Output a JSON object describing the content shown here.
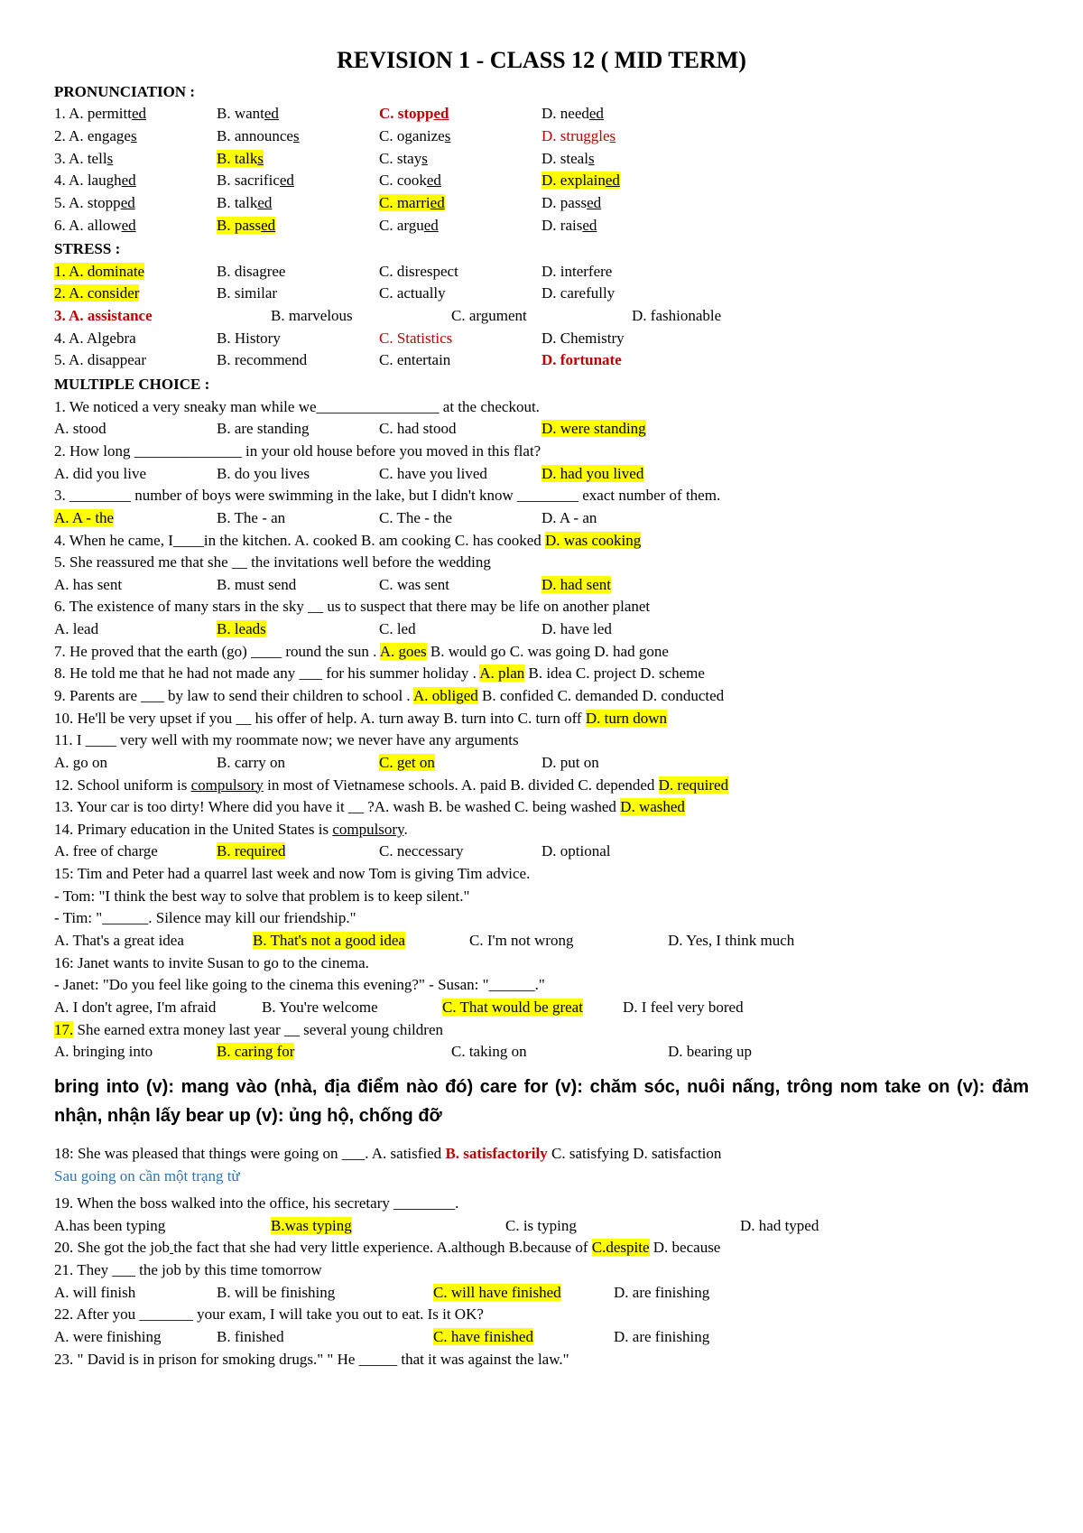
{
  "title": "REVISION 1 - CLASS 12 ( MID TERM)",
  "sections": {
    "pronunciation": "PRONUNCIATION :",
    "stress": "STRESS :",
    "mc": "MULTIPLE CHOICE :"
  },
  "pron": [
    {
      "a": "1. A. permitt",
      "au": "ed",
      "b": "B. want",
      "bu": "ed",
      "c": "C. stopp",
      "cu": "ed",
      "cRedBold": true,
      "d": "D. need",
      "du": "ed"
    },
    {
      "a": "2. A. engage",
      "au": "s",
      "b": "B. announce",
      "bu": "s",
      "c": "C. oganize",
      "cu": "s",
      "d": "D. struggle",
      "du": "s",
      "dRed": true
    },
    {
      "a": "3. A. tell",
      "au": "s",
      "b": "B. talk",
      "bu": "s",
      "bHl": true,
      "c": "C. stay",
      "cu": "s",
      "d": "D. steal",
      "du": "s"
    },
    {
      "a": "4. A. laugh",
      "au": "ed",
      "b": "B. sacrific",
      "bu": "ed",
      "c": "C. cook",
      "cu": "ed",
      "d": "D. explain",
      "du": "ed",
      "dHl": true
    },
    {
      "a": "5. A. stopp",
      "au": "ed",
      "b": "B. talk",
      "bu": "ed",
      "c": "C. marri",
      "cu": "ed",
      "cHl": true,
      "d": "D. pass",
      "du": "ed "
    },
    {
      "a": "6. A. allow",
      "au": "ed",
      "b": "B. pass",
      "bu": "ed",
      "bHl": true,
      "c": "C. argu",
      "cu": "ed",
      "d": "D. rais",
      "du": "ed "
    }
  ],
  "stress": [
    {
      "a": "1. A. dominate",
      "aHl": true,
      "b": "B. disagree",
      "c": "C. disrespect",
      "d": "D. interfere"
    },
    {
      "a": "2. A. consider",
      "aHl": true,
      "b": "B. similar",
      "c": "C. actually",
      "d": "D. carefully"
    },
    {
      "type": "three",
      "a": "3. A. assistance",
      "aRedBold": true,
      "b": "B. marvelous",
      "c": "C. argument",
      "d": "D. fashionable"
    },
    {
      "a": "4. A. Algebra",
      "b": "B. History",
      "c": "C. Statistics",
      "cRed": true,
      "d": "D. Chemistry"
    },
    {
      "a": "5. A. disappear",
      "b": "B. recommend",
      "c": "C. entertain",
      "d": "D. fortunate",
      "dRedBold": true
    }
  ],
  "mc": {
    "q1": "1. We noticed a very sneaky man while we________________ at the checkout.",
    "q1a": "A. stood",
    "q1b": "B. are standing",
    "q1c": "C. had stood",
    "q1d": "D. were standing",
    "q2": "2. How long ______________ in your old house before you moved in this flat?",
    "q2a": "A. did you live",
    "q2b": "B. do you lives",
    "q2c": "C. have you lived",
    "q2d": "D. had you lived",
    "q3": "3. ________ number of boys were swimming in the lake, but I didn't know ________ exact number of them.",
    "q3a": "A. A - the",
    "q3b": "B. The - an",
    "q3c": "C. The - the",
    "q3d": "D. A - an",
    "q4": "4. When he came, I____in the kitchen. A. cooked        B. am cooking      C. has cooked         ",
    "q4d": "D. was cooking",
    "q5": "5. She reassured me that she __ the invitations well before the wedding",
    "q5a": "A. has sent",
    "q5b": "B. must send",
    "q5c": "C. was sent",
    "q5d": "D. had sent",
    "q6": "6. The existence of many stars in the sky __ us to suspect that there may be life on another planet",
    "q6a": "A. lead",
    "q6b": "B. leads",
    "q6c": "C. led",
    "q6d": "D. have led",
    "q7a": "7. He proved that the earth (go) ____ round the sun         . ",
    "q7goes": "A. goes",
    "q7b": "  B. would go  C. was going   D. had gone",
    "q8a": "8. He told me that he had not made any ___ for his summer holiday . ",
    "q8plan": "A. plan",
    "q8b": "       B. idea  C. project  D. scheme",
    "q9a": "9. Parents are ___ by law to send  their children to school . ",
    "q9ob": "A. obliged",
    "q9b": "    B. confided      C. demanded    D. conducted",
    "q10a": "10. He'll be very upset if you __ his offer of help. A. turn away   B. turn into       C. turn off       ",
    "q10d": "D. turn down",
    "q11": "11. I ____ very well with my roommate now; we never have any arguments",
    "q11a": "A. go on",
    "q11b": "B. carry on",
    "q11c": "C. get on",
    "q11d": "D. put on",
    "q12a": "12. School uniform is ",
    "q12comp": "compulsory",
    "q12b": " in most of Vietnamese schools. A. paid     B. divided    C. depended      ",
    "q12d": "D. required",
    "q13a": "13. Your car is too dirty! Where did you have it __ ?A. wash       B. be washed    C. being washed        ",
    "q13d": "D. washed",
    "q14a": "14. Primary education in the United States is ",
    "q14comp": "compulsory",
    "q14dot": ".",
    "q14aa": "A. free of charge",
    "q14b": "B. required",
    "q14c": "C. neccessary",
    "q14d": "D. optional",
    "q15": "15: Tim and Peter had a quarrel last week and now Tom is giving Tim advice.",
    "q15t": "- Tom: \"I think the best way to solve that problem is to keep silent.\"",
    "q15u": "- Tim: \"______. Silence may kill our friendship.\"",
    "q15a": "A. That's a great idea",
    "q15b": "B. That's not a good idea",
    "q15c": "C. I'm not wrong",
    "q15d": "D. Yes, I think much",
    "q16": "16: Janet wants to invite Susan to go to the cinema.",
    "q16j": "- Janet: \"Do you feel like going to the cinema this evening?\" - Susan: \"______.\"",
    "q16a": "A. I don't agree, I'm afraid",
    "q16b": "B. You're welcome",
    "q16c": "C. That would be great",
    "q16d": "D. I feel very bored",
    "q17n": "17.",
    "q17q": " She earned extra money last year __ several young children",
    "q17a": "A. bringing into",
    "q17b": "B. caring for",
    "q17c": "C. taking on",
    "q17d": "D. bearing up",
    "q18a": "18: She was pleased that things were going on ___. A. satisfied      ",
    "q18b": "B. satisfactorily",
    "q18c": "     C. satisfying     D. satisfaction",
    "note18": "Sau going on cần một trạng từ",
    "q19": "19. When the boss walked into the office, his secretary ________.",
    "q19a": "A.has been typing",
    "q19b": "B.was typing",
    "q19c": "C. is typing",
    "q19d": "D. had typed",
    "q20a": "20. She got the job",
    "q20u": " ",
    "q20b": "the fact that she had very little experience. A.although  B.because of  ",
    "q20c": "C.despite",
    "q20d": " D. because",
    "q21": "21. They ___ the job by this time tomorrow",
    "q21a": "A. will finish",
    "q21b": "B. will be finishing",
    "q21c": "C. will have finished",
    "q21d": "D. are finishing",
    "q22": "22. After you _______ your exam, I will take you out to eat. Is it OK?",
    "q22a": "A. were finishing",
    "q22b": "B. finished",
    "q22c": "C. have finished",
    "q22d": "D. are finishing",
    "q23": "23. \" David is in prison for smoking drugs.\" \" He _____ that it was against the law.\""
  },
  "vocab": "bring into (v): mang vào (nhà, địa điểm nào đó)    care for (v): chăm sóc, nuôi nấng, trông nom   take on (v): đảm nhận, nhận lấy    bear up (v): ủng hộ, chống đỡ"
}
